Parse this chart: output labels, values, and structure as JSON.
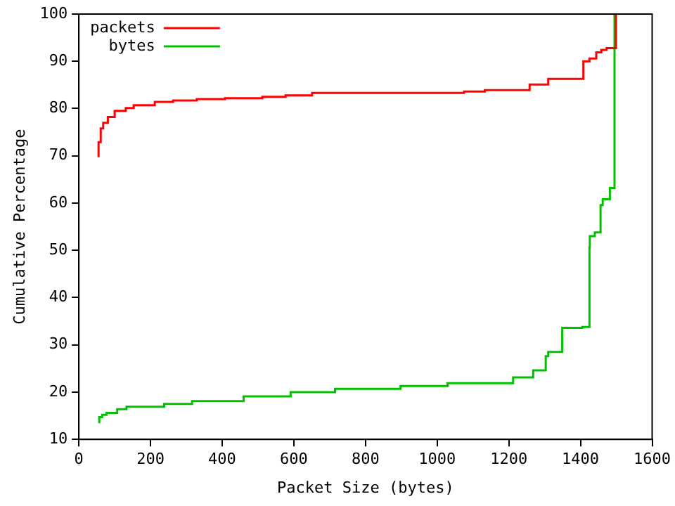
{
  "chart_data": {
    "type": "step",
    "xlabel": "Packet Size (bytes)",
    "ylabel": "Cumulative Percentage",
    "xlim": [
      0,
      1600
    ],
    "ylim": [
      10,
      100
    ],
    "xticks": [
      0,
      200,
      400,
      600,
      800,
      1000,
      1200,
      1400,
      1600
    ],
    "yticks": [
      10,
      20,
      30,
      40,
      50,
      60,
      70,
      80,
      90,
      100
    ],
    "grid": false,
    "legend": "top left",
    "marker": "none",
    "line_style": "solid",
    "series": [
      {
        "name": "packets",
        "color": "#ff0000",
        "x": [
          55,
          61,
          68,
          81,
          100,
          131,
          153,
          212,
          263,
          329,
          408,
          512,
          577,
          651,
          1075,
          1133,
          1258,
          1310,
          1408,
          1425,
          1444,
          1458,
          1473,
          1499,
          1500
        ],
        "values": [
          69.7,
          72.9,
          75.8,
          77,
          78.2,
          79.5,
          80.1,
          80.7,
          81.4,
          81.7,
          82,
          82.2,
          82.5,
          82.8,
          83.3,
          83.6,
          83.9,
          85.1,
          86.3,
          90,
          90.6,
          91.9,
          92.4,
          92.8,
          100
        ]
      },
      {
        "name": "bytes",
        "color": "#00c000",
        "x": [
          57,
          65,
          77,
          107,
          133,
          238,
          316,
          460,
          591,
          715,
          898,
          1029,
          1212,
          1268,
          1303,
          1310,
          1349,
          1405,
          1425,
          1426,
          1440,
          1456,
          1462,
          1482,
          1495,
          1500
        ],
        "values": [
          13.4,
          14.7,
          15.2,
          15.6,
          16.4,
          16.9,
          17.5,
          18.1,
          19.1,
          20,
          20.7,
          21.3,
          21.9,
          23.1,
          24.6,
          27.6,
          28.5,
          33.6,
          33.8,
          50.6,
          53,
          53.8,
          59.6,
          60.8,
          63.2,
          100
        ]
      }
    ]
  }
}
